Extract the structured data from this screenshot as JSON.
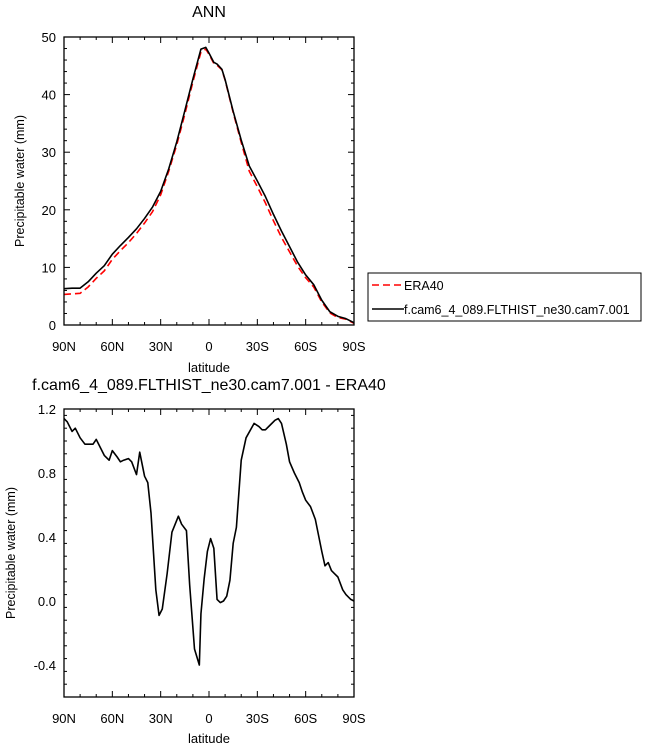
{
  "chart_data": [
    {
      "type": "line",
      "title": "ANN",
      "xlabel": "latitude",
      "ylabel": "Precipitable water (mm)",
      "xlim": [
        90,
        -90
      ],
      "ylim": [
        0,
        50
      ],
      "xticks": [
        90,
        60,
        30,
        0,
        -30,
        -60,
        -90
      ],
      "xtick_labels": [
        "90N",
        "60N",
        "30N",
        "0",
        "30S",
        "60S",
        "90S"
      ],
      "yticks": [
        0,
        10,
        20,
        30,
        40,
        50
      ],
      "ytick_labels": [
        "0",
        "10",
        "20",
        "30",
        "40",
        "50"
      ],
      "grid": false,
      "legend": "outside-right",
      "series": [
        {
          "name": "ERA40",
          "color": "#ff0000",
          "dash": "dashed",
          "x": [
            90,
            85,
            80,
            75,
            70,
            65,
            60,
            55,
            50,
            45,
            40,
            35,
            30,
            25,
            20,
            15,
            10,
            5,
            2,
            0,
            -3,
            -5,
            -8,
            -10,
            -15,
            -20,
            -25,
            -30,
            -35,
            -40,
            -45,
            -50,
            -55,
            -60,
            -65,
            -70,
            -75,
            -80,
            -85,
            -90
          ],
          "y": [
            5.3,
            5.4,
            5.5,
            6.6,
            8.1,
            9.4,
            11.4,
            12.9,
            14.3,
            15.9,
            17.7,
            19.7,
            22.6,
            26.7,
            31.3,
            36.6,
            42.2,
            47.4,
            47.9,
            47.0,
            45.4,
            45.1,
            44.3,
            42.5,
            36.9,
            31.7,
            26.7,
            24.0,
            21.2,
            18.1,
            15.2,
            12.7,
            10.2,
            8.2,
            6.6,
            4.0,
            2.1,
            1.3,
            1.0,
            0.3
          ]
        },
        {
          "name": "f.cam6_4_089.FLTHIST_ne30.cam7.001",
          "color": "#000000",
          "dash": "solid",
          "x": [
            90,
            85,
            80,
            75,
            70,
            65,
            60,
            55,
            50,
            45,
            40,
            35,
            30,
            25,
            20,
            15,
            10,
            5,
            2,
            0,
            -3,
            -5,
            -8,
            -10,
            -15,
            -20,
            -25,
            -30,
            -35,
            -40,
            -45,
            -50,
            -55,
            -60,
            -65,
            -70,
            -75,
            -80,
            -85,
            -90
          ],
          "y": [
            6.3,
            6.4,
            6.4,
            7.5,
            9.0,
            10.3,
            12.3,
            13.8,
            15.2,
            16.7,
            18.5,
            20.5,
            23.2,
            27.1,
            31.8,
            37.2,
            42.7,
            47.9,
            48.2,
            47.2,
            45.6,
            45.3,
            44.4,
            42.6,
            37.1,
            32.1,
            27.6,
            25.0,
            22.3,
            19.2,
            16.3,
            13.6,
            10.9,
            8.7,
            7.0,
            4.3,
            2.3,
            1.5,
            1.1,
            0.4
          ]
        }
      ]
    },
    {
      "type": "line",
      "title": "f.cam6_4_089.FLTHIST_ne30.cam7.001 - ERA40",
      "xlabel": "latitude",
      "ylabel": "Precipitable water (mm)",
      "xlim": [
        90,
        -90
      ],
      "ylim": [
        -0.6,
        1.2
      ],
      "xticks": [
        90,
        60,
        30,
        0,
        -30,
        -60,
        -90
      ],
      "xtick_labels": [
        "90N",
        "60N",
        "30N",
        "0",
        "30S",
        "60S",
        "90S"
      ],
      "yticks": [
        -0.4,
        0.0,
        0.4,
        0.8,
        1.2
      ],
      "ytick_labels": [
        "-0.4",
        "0.0",
        "0.4",
        "0.8",
        "1.2"
      ],
      "grid": false,
      "series": [
        {
          "name": "",
          "color": "#000000",
          "dash": "solid",
          "x": [
            90,
            88,
            85,
            83,
            80,
            77,
            74,
            72,
            70,
            67,
            65,
            62,
            60,
            57,
            55,
            53,
            50,
            48,
            45,
            43,
            40,
            38,
            36,
            33,
            31,
            29,
            26,
            23,
            19,
            17,
            14,
            12,
            9,
            6,
            5,
            3,
            1,
            -1,
            -3,
            -5,
            -7,
            -9,
            -11,
            -13,
            -15,
            -17,
            -20,
            -23,
            -28,
            -31,
            -33,
            -35,
            -38,
            -41,
            -43,
            -45,
            -48,
            -50,
            -53,
            -56,
            -58,
            -60,
            -63,
            -66,
            -68,
            -70,
            -72,
            -74,
            -76,
            -78,
            -80,
            -83,
            -85,
            -88,
            -90
          ],
          "y": [
            1.14,
            1.12,
            1.06,
            1.08,
            1.02,
            0.98,
            0.98,
            0.98,
            1.01,
            0.95,
            0.91,
            0.88,
            0.94,
            0.9,
            0.87,
            0.88,
            0.89,
            0.87,
            0.79,
            0.93,
            0.78,
            0.74,
            0.55,
            0.07,
            -0.09,
            -0.05,
            0.17,
            0.43,
            0.53,
            0.48,
            0.44,
            0.1,
            -0.3,
            -0.4,
            -0.08,
            0.14,
            0.31,
            0.39,
            0.33,
            0.01,
            -0.01,
            0.0,
            0.03,
            0.13,
            0.36,
            0.46,
            0.88,
            1.02,
            1.11,
            1.09,
            1.07,
            1.07,
            1.1,
            1.13,
            1.14,
            1.11,
            0.98,
            0.87,
            0.8,
            0.74,
            0.68,
            0.63,
            0.59,
            0.51,
            0.41,
            0.31,
            0.22,
            0.24,
            0.19,
            0.17,
            0.15,
            0.07,
            0.04,
            0.01,
            0.0
          ]
        }
      ]
    }
  ]
}
